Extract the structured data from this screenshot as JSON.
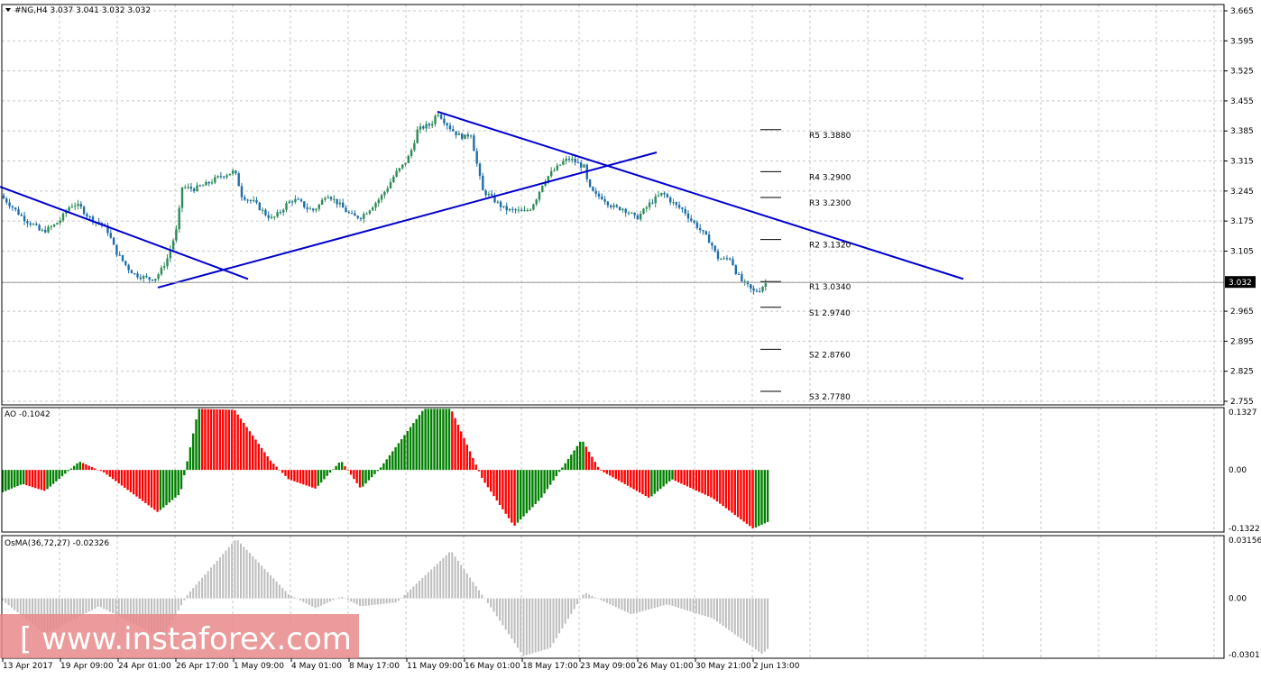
{
  "header": {
    "symbol_info": "#NG,H4  3.037 3.041 3.032 3.032",
    "ao_label": "AO -0.1042",
    "osma_label": "OsMA(36,72,27) -0.02326"
  },
  "watermark": {
    "text": "[ www.instaforex.com ]"
  },
  "colors": {
    "bull_candle": "#2e8b57",
    "bear_candle": "#1e6ea8",
    "trendline": "#0000cc",
    "ao_up": "#008000",
    "ao_down": "#ff0000",
    "osma": "#bdbdbd",
    "grid": "#c8c8c8",
    "watermark_bg": "#e88a8a"
  },
  "chart_data": [
    {
      "type": "candlestick",
      "symbol": "#NG",
      "timeframe": "H4",
      "ylim": [
        2.755,
        3.665
      ],
      "y_ticks": [
        "3.665",
        "3.595",
        "3.525",
        "3.455",
        "3.385",
        "3.315",
        "3.245",
        "3.175",
        "3.105",
        "3.032",
        "2.965",
        "2.895",
        "2.825",
        "2.755"
      ],
      "current_price": "3.032",
      "x_labels": [
        "13 Apr 2017",
        "19 Apr 09:00",
        "24 Apr 01:00",
        "26 Apr 17:00",
        "1 May 09:00",
        "4 May 01:00",
        "8 May 17:00",
        "11 May 09:00",
        "16 May 01:00",
        "18 May 17:00",
        "23 May 09:00",
        "26 May 01:00",
        "30 May 21:00",
        "2 Jun 13:00"
      ],
      "close_path": [
        [
          0,
          3.235
        ],
        [
          8,
          3.22
        ],
        [
          15,
          3.205
        ],
        [
          22,
          3.19
        ],
        [
          30,
          3.175
        ],
        [
          38,
          3.165
        ],
        [
          45,
          3.15
        ],
        [
          52,
          3.155
        ],
        [
          60,
          3.165
        ],
        [
          68,
          3.18
        ],
        [
          75,
          3.205
        ],
        [
          82,
          3.215
        ],
        [
          90,
          3.205
        ],
        [
          98,
          3.185
        ],
        [
          105,
          3.175
        ],
        [
          112,
          3.17
        ],
        [
          120,
          3.15
        ],
        [
          128,
          3.105
        ],
        [
          135,
          3.085
        ],
        [
          142,
          3.065
        ],
        [
          150,
          3.05
        ],
        [
          158,
          3.045
        ],
        [
          165,
          3.04
        ],
        [
          172,
          3.042
        ],
        [
          178,
          3.058
        ],
        [
          185,
          3.085
        ],
        [
          192,
          3.13
        ],
        [
          198,
          3.17
        ],
        [
          200,
          3.255
        ],
        [
          208,
          3.252
        ],
        [
          215,
          3.25
        ],
        [
          222,
          3.255
        ],
        [
          230,
          3.262
        ],
        [
          238,
          3.272
        ],
        [
          245,
          3.28
        ],
        [
          252,
          3.285
        ],
        [
          258,
          3.29
        ],
        [
          262,
          3.28
        ],
        [
          268,
          3.235
        ],
        [
          275,
          3.225
        ],
        [
          282,
          3.218
        ],
        [
          288,
          3.205
        ],
        [
          295,
          3.19
        ],
        [
          302,
          3.18
        ],
        [
          310,
          3.195
        ],
        [
          318,
          3.215
        ],
        [
          325,
          3.225
        ],
        [
          332,
          3.22
        ],
        [
          340,
          3.205
        ],
        [
          348,
          3.2
        ],
        [
          355,
          3.215
        ],
        [
          362,
          3.24
        ],
        [
          370,
          3.225
        ],
        [
          378,
          3.21
        ],
        [
          385,
          3.195
        ],
        [
          392,
          3.185
        ],
        [
          400,
          3.185
        ],
        [
          408,
          3.2
        ],
        [
          415,
          3.215
        ],
        [
          422,
          3.23
        ],
        [
          430,
          3.255
        ],
        [
          438,
          3.285
        ],
        [
          445,
          3.3
        ],
        [
          452,
          3.32
        ],
        [
          458,
          3.35
        ],
        [
          462,
          3.385
        ],
        [
          470,
          3.395
        ],
        [
          478,
          3.4
        ],
        [
          485,
          3.43
        ],
        [
          492,
          3.41
        ],
        [
          500,
          3.39
        ],
        [
          508,
          3.375
        ],
        [
          515,
          3.37
        ],
        [
          522,
          3.38
        ],
        [
          528,
          3.315
        ],
        [
          535,
          3.245
        ],
        [
          542,
          3.235
        ],
        [
          550,
          3.22
        ],
        [
          558,
          3.205
        ],
        [
          565,
          3.2
        ],
        [
          572,
          3.2
        ],
        [
          580,
          3.195
        ],
        [
          588,
          3.205
        ],
        [
          595,
          3.23
        ],
        [
          602,
          3.265
        ],
        [
          610,
          3.285
        ],
        [
          618,
          3.3
        ],
        [
          625,
          3.315
        ],
        [
          632,
          3.32
        ],
        [
          640,
          3.31
        ],
        [
          648,
          3.3
        ],
        [
          652,
          3.255
        ],
        [
          660,
          3.235
        ],
        [
          668,
          3.23
        ],
        [
          675,
          3.215
        ],
        [
          682,
          3.205
        ],
        [
          690,
          3.205
        ],
        [
          698,
          3.195
        ],
        [
          705,
          3.18
        ],
        [
          712,
          3.195
        ],
        [
          720,
          3.215
        ],
        [
          728,
          3.23
        ],
        [
          735,
          3.24
        ],
        [
          742,
          3.225
        ],
        [
          750,
          3.21
        ],
        [
          758,
          3.2
        ],
        [
          765,
          3.18
        ],
        [
          772,
          3.165
        ],
        [
          780,
          3.145
        ],
        [
          788,
          3.125
        ],
        [
          795,
          3.09
        ],
        [
          802,
          3.085
        ],
        [
          810,
          3.09
        ],
        [
          815,
          3.06
        ],
        [
          822,
          3.035
        ],
        [
          828,
          3.025
        ],
        [
          835,
          3.01
        ],
        [
          842,
          3.015
        ],
        [
          848,
          3.03
        ],
        [
          852,
          3.032
        ]
      ],
      "trendlines": [
        {
          "from": [
            0,
            3.255
          ],
          "to": [
            275,
            3.04
          ]
        },
        {
          "from": [
            175,
            3.02
          ],
          "to": [
            728,
            3.335
          ]
        },
        {
          "from": [
            485,
            3.43
          ],
          "to": [
            1068,
            3.04
          ]
        }
      ],
      "pivot_levels": [
        {
          "label": "R5 3.3880",
          "value": 3.388
        },
        {
          "label": "R4 3.2900",
          "value": 3.29
        },
        {
          "label": "R3 3.2300",
          "value": 3.23
        },
        {
          "label": "R2 3.1320",
          "value": 3.132
        },
        {
          "label": "R1 3.0340",
          "value": 3.034
        },
        {
          "label": "S1 2.9740",
          "value": 2.974
        },
        {
          "label": "S2 2.8760",
          "value": 2.876
        },
        {
          "label": "S3 2.7780",
          "value": 2.778
        }
      ]
    },
    {
      "type": "bar",
      "name": "AO",
      "ylim": [
        -0.1322,
        0.1327
      ],
      "y_ticks": [
        "0.1327",
        "0.00",
        "-0.1322"
      ],
      "last_value": -0.1042,
      "knots": [
        [
          0,
          -0.05
        ],
        [
          25,
          -0.03
        ],
        [
          50,
          -0.045
        ],
        [
          88,
          0.018
        ],
        [
          115,
          -0.005
        ],
        [
          175,
          -0.09
        ],
        [
          200,
          -0.05
        ],
        [
          220,
          0.13
        ],
        [
          260,
          0.128
        ],
        [
          300,
          0.02
        ],
        [
          320,
          -0.02
        ],
        [
          350,
          -0.04
        ],
        [
          378,
          0.02
        ],
        [
          400,
          -0.04
        ],
        [
          420,
          0.0
        ],
        [
          470,
          0.13
        ],
        [
          500,
          0.13
        ],
        [
          535,
          -0.02
        ],
        [
          570,
          -0.12
        ],
        [
          600,
          -0.06
        ],
        [
          645,
          0.065
        ],
        [
          665,
          0.0
        ],
        [
          720,
          -0.06
        ],
        [
          745,
          -0.02
        ],
        [
          790,
          -0.06
        ],
        [
          835,
          -0.125
        ],
        [
          852,
          -0.11
        ]
      ]
    },
    {
      "type": "bar",
      "name": "OsMA(36,72,27)",
      "ylim": [
        -0.03011,
        0.03156
      ],
      "y_ticks": [
        "0.03156",
        "0.00",
        "-0.03011"
      ],
      "last_value": -0.02326,
      "knots": [
        [
          0,
          0.0
        ],
        [
          50,
          -0.018
        ],
        [
          110,
          -0.004
        ],
        [
          180,
          -0.02
        ],
        [
          208,
          0.002
        ],
        [
          262,
          0.03
        ],
        [
          320,
          0.002
        ],
        [
          350,
          -0.005
        ],
        [
          378,
          0.001
        ],
        [
          400,
          -0.004
        ],
        [
          440,
          -0.002
        ],
        [
          500,
          0.024
        ],
        [
          545,
          -0.005
        ],
        [
          580,
          -0.029
        ],
        [
          610,
          -0.025
        ],
        [
          648,
          0.003
        ],
        [
          700,
          -0.008
        ],
        [
          740,
          -0.003
        ],
        [
          790,
          -0.01
        ],
        [
          845,
          -0.028
        ],
        [
          852,
          -0.025
        ]
      ]
    }
  ]
}
